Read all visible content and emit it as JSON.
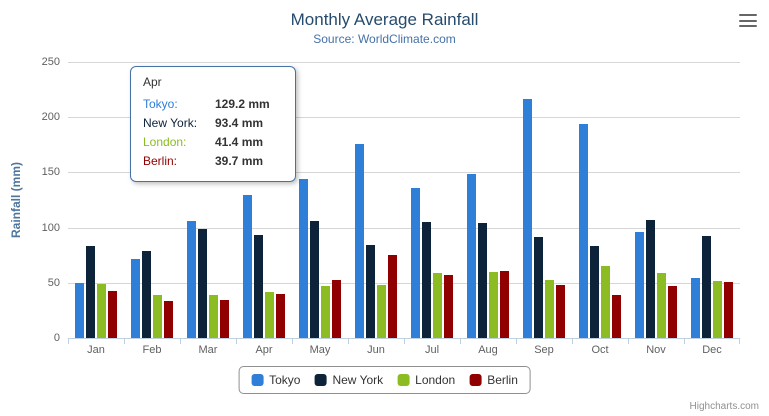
{
  "header": {
    "title": "Monthly Average Rainfall",
    "subtitle": "Source: WorldClimate.com"
  },
  "credits": {
    "label": "Highcharts.com"
  },
  "chart_data": {
    "type": "bar",
    "title": "Monthly Average Rainfall",
    "subtitle": "Source: WorldClimate.com",
    "xlabel": "",
    "ylabel": "Rainfall (mm)",
    "ylim": [
      0,
      250
    ],
    "yticks": [
      0,
      50,
      100,
      150,
      200,
      250
    ],
    "grid": true,
    "legend_position": "bottom",
    "categories": [
      "Jan",
      "Feb",
      "Mar",
      "Apr",
      "May",
      "Jun",
      "Jul",
      "Aug",
      "Sep",
      "Oct",
      "Nov",
      "Dec"
    ],
    "series": [
      {
        "name": "Tokyo",
        "color": "#2f7ed8",
        "values": [
          49.9,
          71.5,
          106.4,
          129.2,
          144.0,
          176.0,
          135.6,
          148.5,
          216.4,
          194.1,
          95.6,
          54.4
        ]
      },
      {
        "name": "New York",
        "color": "#0d233a",
        "values": [
          83.6,
          78.8,
          98.5,
          93.4,
          106.0,
          84.5,
          105.0,
          104.3,
          91.2,
          83.5,
          106.6,
          92.3
        ]
      },
      {
        "name": "London",
        "color": "#8bbc21",
        "values": [
          48.9,
          38.8,
          39.3,
          41.4,
          47.0,
          48.3,
          59.0,
          59.6,
          52.4,
          65.2,
          59.3,
          51.2
        ]
      },
      {
        "name": "Berlin",
        "color": "#910000",
        "values": [
          42.4,
          33.2,
          34.5,
          39.7,
          52.6,
          75.5,
          57.4,
          60.4,
          47.6,
          39.1,
          46.8,
          51.1
        ]
      }
    ]
  },
  "tooltip": {
    "header": "Apr",
    "border_color": "#4572A7",
    "rows": [
      {
        "label": "Tokyo:",
        "value": "129.2 mm",
        "color": "#2f7ed8"
      },
      {
        "label": "New York:",
        "value": "93.4 mm",
        "color": "#0d233a"
      },
      {
        "label": "London:",
        "value": "41.4 mm",
        "color": "#8bbc21"
      },
      {
        "label": "Berlin:",
        "value": "39.7 mm",
        "color": "#910000"
      }
    ]
  }
}
